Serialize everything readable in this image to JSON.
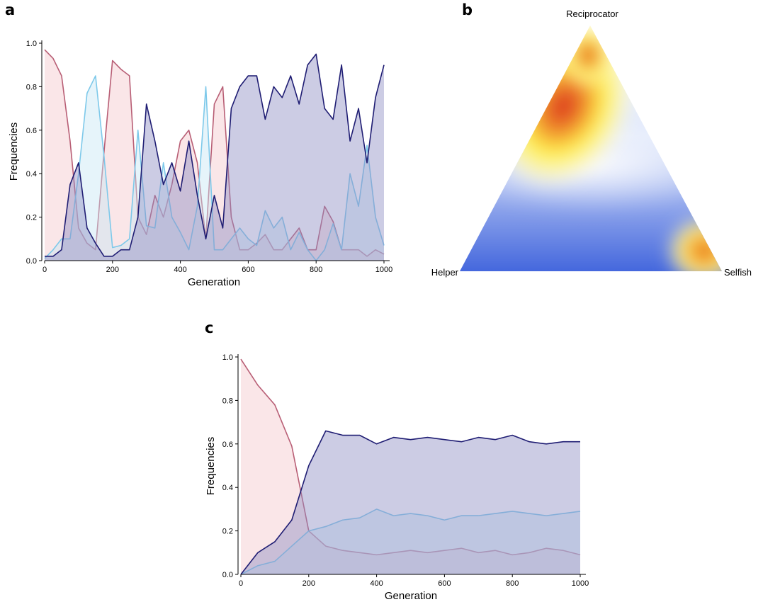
{
  "panels": {
    "a": "a",
    "b": "b",
    "c": "c"
  },
  "colors": {
    "helper_line": "#b85e75",
    "helper_fill": "#f3c7cd",
    "reciprocator_line": "#1f1d73",
    "reciprocator_fill": "#8f8ec4",
    "selfish_line": "#7ec9ea",
    "selfish_fill": "#c8e6f5"
  },
  "chart_data": [
    {
      "panel": "a",
      "type": "area",
      "xlabel": "Generation",
      "ylabel": "Frequencies",
      "xlim": [
        0,
        1000
      ],
      "ylim": [
        0,
        1
      ],
      "xticks": [
        0,
        200,
        400,
        600,
        800,
        1000
      ],
      "yticks": [
        0.0,
        0.2,
        0.4,
        0.6,
        0.8,
        1.0
      ],
      "ytick_labels": [
        "0.0",
        "0.2",
        "0.4",
        "0.6",
        "0.8",
        "1.0"
      ],
      "grid": false,
      "x": [
        0,
        25,
        50,
        75,
        100,
        125,
        150,
        175,
        200,
        225,
        250,
        275,
        300,
        325,
        350,
        375,
        400,
        425,
        450,
        475,
        500,
        525,
        550,
        575,
        600,
        625,
        650,
        675,
        700,
        725,
        750,
        775,
        800,
        825,
        850,
        875,
        900,
        925,
        950,
        975,
        1000
      ],
      "series": [
        {
          "key": "helper",
          "values": [
            0.97,
            0.93,
            0.85,
            0.55,
            0.15,
            0.08,
            0.05,
            0.5,
            0.92,
            0.88,
            0.85,
            0.2,
            0.12,
            0.3,
            0.2,
            0.35,
            0.55,
            0.6,
            0.45,
            0.1,
            0.72,
            0.8,
            0.2,
            0.05,
            0.05,
            0.08,
            0.12,
            0.05,
            0.05,
            0.1,
            0.15,
            0.05,
            0.05,
            0.25,
            0.18,
            0.05,
            0.05,
            0.05,
            0.02,
            0.05,
            0.03
          ]
        },
        {
          "key": "reciprocator",
          "values": [
            0.02,
            0.02,
            0.05,
            0.35,
            0.45,
            0.15,
            0.08,
            0.02,
            0.02,
            0.05,
            0.05,
            0.2,
            0.72,
            0.55,
            0.35,
            0.45,
            0.32,
            0.55,
            0.3,
            0.1,
            0.3,
            0.15,
            0.7,
            0.8,
            0.85,
            0.85,
            0.65,
            0.8,
            0.75,
            0.85,
            0.72,
            0.9,
            0.95,
            0.7,
            0.65,
            0.9,
            0.55,
            0.7,
            0.45,
            0.75,
            0.9
          ]
        },
        {
          "key": "selfish",
          "values": [
            0.01,
            0.05,
            0.1,
            0.1,
            0.4,
            0.77,
            0.85,
            0.48,
            0.06,
            0.07,
            0.1,
            0.6,
            0.16,
            0.15,
            0.45,
            0.2,
            0.13,
            0.05,
            0.25,
            0.8,
            0.05,
            0.05,
            0.1,
            0.15,
            0.1,
            0.07,
            0.23,
            0.15,
            0.2,
            0.05,
            0.13,
            0.05,
            0.0,
            0.05,
            0.17,
            0.05,
            0.4,
            0.25,
            0.53,
            0.2,
            0.07
          ]
        }
      ]
    },
    {
      "panel": "b",
      "type": "heatmap",
      "vertex_labels": {
        "top": "Reciprocator",
        "left": "Helper",
        "right": "Selfish"
      },
      "hotspots": [
        {
          "near": "Reciprocator vertex",
          "intensity": "high"
        },
        {
          "near": "Selfish vertex",
          "intensity": "high"
        }
      ],
      "colormap": [
        "#3f63dc",
        "#ffffff",
        "#fff04a",
        "#d7261e"
      ]
    },
    {
      "panel": "c",
      "type": "area",
      "xlabel": "Generation",
      "ylabel": "Frequencies",
      "xlim": [
        0,
        1000
      ],
      "ylim": [
        0,
        1
      ],
      "xticks": [
        0,
        200,
        400,
        600,
        800,
        1000
      ],
      "yticks": [
        0.0,
        0.2,
        0.4,
        0.6,
        0.8,
        1.0
      ],
      "ytick_labels": [
        "0.0",
        "0.2",
        "0.4",
        "0.6",
        "0.8",
        "1.0"
      ],
      "grid": false,
      "x": [
        0,
        50,
        100,
        150,
        200,
        250,
        300,
        350,
        400,
        450,
        500,
        550,
        600,
        650,
        700,
        750,
        800,
        850,
        900,
        950,
        1000
      ],
      "series": [
        {
          "key": "helper",
          "values": [
            0.99,
            0.87,
            0.78,
            0.59,
            0.2,
            0.13,
            0.11,
            0.1,
            0.09,
            0.1,
            0.11,
            0.1,
            0.11,
            0.12,
            0.1,
            0.11,
            0.09,
            0.1,
            0.12,
            0.11,
            0.09
          ]
        },
        {
          "key": "reciprocator",
          "values": [
            0.0,
            0.1,
            0.15,
            0.25,
            0.5,
            0.66,
            0.64,
            0.64,
            0.6,
            0.63,
            0.62,
            0.63,
            0.62,
            0.61,
            0.63,
            0.62,
            0.64,
            0.61,
            0.6,
            0.61,
            0.61
          ]
        },
        {
          "key": "selfish",
          "values": [
            0.0,
            0.04,
            0.06,
            0.13,
            0.2,
            0.22,
            0.25,
            0.26,
            0.3,
            0.27,
            0.28,
            0.27,
            0.25,
            0.27,
            0.27,
            0.28,
            0.29,
            0.28,
            0.27,
            0.28,
            0.29
          ]
        }
      ]
    }
  ]
}
